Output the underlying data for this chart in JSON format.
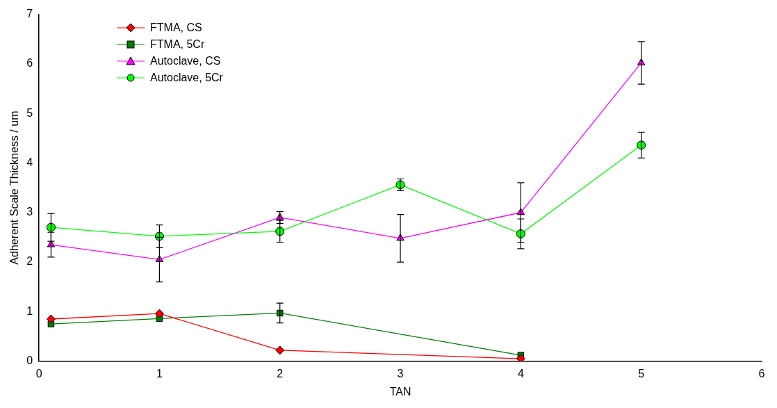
{
  "chart_data": {
    "type": "line",
    "xlabel": "TAN",
    "ylabel": "Adherent Scale Thickness / um",
    "xlim": [
      0,
      6
    ],
    "xticks": [
      0,
      1,
      2,
      3,
      4,
      5,
      6
    ],
    "ylim": [
      0,
      7
    ],
    "yticks": [
      0,
      1,
      2,
      3,
      4,
      5,
      6,
      7
    ],
    "grid": false,
    "legend": "top left",
    "line_style": "solid",
    "series": [
      {
        "name": "FTMA, CS",
        "color": "#ff0000",
        "marker": "diamond",
        "x": [
          0.1,
          1,
          2,
          4
        ],
        "values": [
          0.85,
          0.96,
          0.22,
          0.05
        ]
      },
      {
        "name": "FTMA, 5Cr",
        "color": "#008000",
        "marker": "square",
        "x": [
          0.1,
          1,
          2,
          4
        ],
        "values": [
          0.75,
          0.86,
          0.97,
          0.12
        ],
        "errors": [
          null,
          null,
          0.2,
          null
        ]
      },
      {
        "name": "Autoclave, CS",
        "color": "#ff00ff",
        "marker": "triangle",
        "x": [
          0.1,
          1,
          2,
          3,
          4,
          5
        ],
        "values": [
          2.35,
          2.05,
          2.9,
          2.48,
          3.0,
          6.02
        ],
        "errors": [
          0.25,
          0.45,
          0.12,
          0.48,
          0.6,
          0.43
        ]
      },
      {
        "name": "Autoclave, 5Cr",
        "color": "#00ff00",
        "marker": "circle",
        "x": [
          0.1,
          1,
          2,
          3,
          4,
          5
        ],
        "values": [
          2.7,
          2.52,
          2.62,
          3.56,
          2.57,
          4.36
        ],
        "errors": [
          0.28,
          0.23,
          0.22,
          0.12,
          0.3,
          0.26
        ]
      }
    ]
  }
}
